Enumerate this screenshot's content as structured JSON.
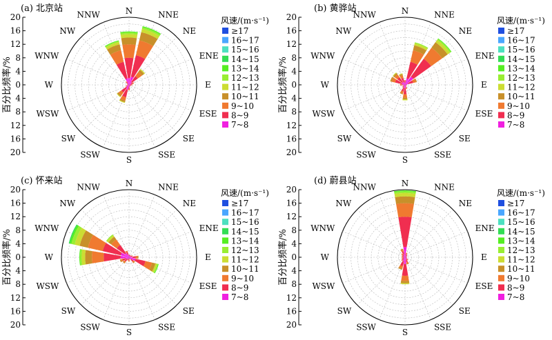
{
  "legend_title": "风速/(m·s⁻¹)",
  "ylabel": "百分比频率/%",
  "directions": [
    "N",
    "NNE",
    "NE",
    "ENE",
    "E",
    "ESE",
    "SE",
    "SSE",
    "S",
    "SSW",
    "SW",
    "WSW",
    "W",
    "WNW",
    "NW",
    "NNW"
  ],
  "legend": [
    {
      "label": "≥17",
      "color": "#1f4fe0"
    },
    {
      "label": "16~17",
      "color": "#4aa6ff"
    },
    {
      "label": "15~16",
      "color": "#4de0c0"
    },
    {
      "label": "14~15",
      "color": "#33dd55"
    },
    {
      "label": "13~14",
      "color": "#55ee22"
    },
    {
      "label": "12~13",
      "color": "#99ee33"
    },
    {
      "label": "11~12",
      "color": "#ccdd33"
    },
    {
      "label": "10~11",
      "color": "#c8902a"
    },
    {
      "label": "9~10",
      "color": "#f07a30"
    },
    {
      "label": "8~9",
      "color": "#f02e50"
    },
    {
      "label": "7~8",
      "color": "#f020e0"
    }
  ],
  "chart_data": [
    {
      "type": "polar-stacked-bar",
      "title": "(a) 北京站",
      "rlim": [
        0,
        20
      ],
      "radial_ticks": [
        0,
        4,
        8,
        12,
        16,
        20
      ],
      "categories": [
        "N",
        "NNE",
        "NE",
        "ENE",
        "E",
        "ESE",
        "SE",
        "SSE",
        "S",
        "SSW",
        "SW",
        "WSW",
        "W",
        "WNW",
        "NW",
        "NNW"
      ],
      "bins": [
        "7~8",
        "8~9",
        "9~10",
        "10~11",
        "11~12",
        "12~13",
        "13~14",
        "14~15"
      ],
      "values": [
        [
          2.0,
          6.0,
          4.0,
          2.0,
          1.0,
          0.5,
          0.3,
          0
        ],
        [
          2.5,
          6.5,
          4.5,
          2.5,
          1.0,
          0.5,
          0.3,
          0
        ],
        [
          1.0,
          2.2,
          1.5,
          0.8,
          0.3,
          0,
          0,
          0
        ],
        [
          0.5,
          0.7,
          0.3,
          0,
          0,
          0,
          0,
          0
        ],
        [
          0.4,
          0.4,
          0.2,
          0,
          0,
          0,
          0,
          0
        ],
        [
          0.3,
          0.3,
          0,
          0,
          0,
          0,
          0,
          0
        ],
        [
          0.3,
          0.2,
          0,
          0,
          0,
          0,
          0,
          0
        ],
        [
          0.3,
          0.3,
          0,
          0,
          0,
          0,
          0,
          0
        ],
        [
          0.5,
          0.8,
          0.3,
          0,
          0,
          0,
          0,
          0
        ],
        [
          1.5,
          2.3,
          1.0,
          0.5,
          0.2,
          0,
          0,
          0
        ],
        [
          1.0,
          1.8,
          1.0,
          0.5,
          0.2,
          0,
          0,
          0
        ],
        [
          0.4,
          0.4,
          0.2,
          0,
          0,
          0,
          0,
          0
        ],
        [
          0.3,
          0.2,
          0,
          0,
          0,
          0,
          0,
          0
        ],
        [
          0.3,
          0.3,
          0,
          0,
          0,
          0,
          0,
          0
        ],
        [
          0.5,
          0.5,
          0.3,
          0,
          0,
          0,
          0,
          0
        ],
        [
          2.0,
          5.0,
          3.5,
          1.8,
          0.7,
          0.3,
          0.2,
          0
        ]
      ]
    },
    {
      "type": "polar-stacked-bar",
      "title": "(b) 黄骅站",
      "rlim": [
        0,
        20
      ],
      "radial_ticks": [
        0,
        4,
        8,
        12,
        16,
        20
      ],
      "categories": [
        "N",
        "NNE",
        "NE",
        "ENE",
        "E",
        "ESE",
        "SE",
        "SSE",
        "S",
        "SSW",
        "SW",
        "WSW",
        "W",
        "WNW",
        "NW",
        "NNW"
      ],
      "bins": [
        "7~8",
        "8~9",
        "9~10",
        "10~11",
        "11~12",
        "12~13",
        "13~14",
        "14~15"
      ],
      "values": [
        [
          0.5,
          0.6,
          0.3,
          0,
          0,
          0,
          0,
          0
        ],
        [
          2.0,
          5.0,
          3.5,
          1.5,
          0.6,
          0.3,
          0,
          0
        ],
        [
          3.0,
          6.5,
          4.0,
          2.0,
          0.8,
          0.4,
          0.2,
          0
        ],
        [
          1.0,
          1.5,
          0.8,
          0.3,
          0,
          0,
          0,
          0
        ],
        [
          0.3,
          0.3,
          0,
          0,
          0,
          0,
          0,
          0
        ],
        [
          0.2,
          0.2,
          0,
          0,
          0,
          0,
          0,
          0
        ],
        [
          0.3,
          0.2,
          0,
          0,
          0,
          0,
          0,
          0
        ],
        [
          0.5,
          0.5,
          0.3,
          0,
          0,
          0,
          0,
          0
        ],
        [
          1.0,
          1.8,
          1.0,
          0.5,
          0.3,
          0,
          0,
          0
        ],
        [
          0.8,
          1.2,
          0.6,
          0.3,
          0,
          0,
          0,
          0
        ],
        [
          0.4,
          0.4,
          0.2,
          0,
          0,
          0,
          0,
          0
        ],
        [
          0.3,
          0.3,
          0,
          0,
          0,
          0,
          0,
          0
        ],
        [
          0.5,
          0.6,
          0.4,
          0,
          0,
          0,
          0,
          0
        ],
        [
          1.0,
          2.0,
          1.0,
          0.5,
          0,
          0,
          0,
          0
        ],
        [
          1.0,
          1.8,
          1.0,
          0.5,
          0.2,
          0,
          0,
          0
        ],
        [
          0.8,
          1.3,
          0.8,
          0.4,
          0.2,
          0,
          0,
          0
        ]
      ]
    },
    {
      "type": "polar-stacked-bar",
      "title": "(c) 怀来站",
      "rlim": [
        0,
        20
      ],
      "radial_ticks": [
        0,
        4,
        8,
        12,
        16,
        20
      ],
      "categories": [
        "N",
        "NNE",
        "NE",
        "ENE",
        "E",
        "ESE",
        "SE",
        "SSE",
        "S",
        "SSW",
        "SW",
        "WSW",
        "W",
        "WNW",
        "NW",
        "NNW"
      ],
      "bins": [
        "7~8",
        "8~9",
        "9~10",
        "10~11",
        "11~12",
        "12~13",
        "13~14",
        "14~15"
      ],
      "values": [
        [
          0.5,
          0.3,
          0,
          0,
          0,
          0,
          0,
          0
        ],
        [
          0.4,
          0.3,
          0,
          0,
          0,
          0,
          0,
          0
        ],
        [
          0.4,
          0.3,
          0,
          0,
          0,
          0,
          0,
          0
        ],
        [
          0.5,
          0.4,
          0.2,
          0,
          0,
          0,
          0,
          0
        ],
        [
          1.0,
          1.0,
          0.5,
          0.3,
          0,
          0,
          0,
          0
        ],
        [
          2.0,
          3.0,
          2.0,
          1.0,
          0.5,
          0.3,
          0.2,
          0
        ],
        [
          0.8,
          0.8,
          0.4,
          0.2,
          0,
          0,
          0,
          0
        ],
        [
          0.3,
          0.3,
          0,
          0,
          0,
          0,
          0,
          0
        ],
        [
          0.5,
          0.5,
          0.3,
          0,
          0,
          0,
          0,
          0
        ],
        [
          0.4,
          0.4,
          0.2,
          0,
          0,
          0,
          0,
          0
        ],
        [
          0.8,
          0.8,
          0.5,
          0.2,
          0,
          0,
          0,
          0
        ],
        [
          1.0,
          1.0,
          0.5,
          0.3,
          0,
          0,
          0,
          0
        ],
        [
          2.5,
          5.0,
          3.5,
          2.0,
          1.0,
          0.5,
          0.2,
          0
        ],
        [
          2.5,
          5.5,
          4.5,
          2.5,
          1.5,
          1.0,
          0.5,
          0.3
        ],
        [
          1.5,
          3.0,
          2.0,
          1.0,
          0.5,
          0.3,
          0,
          0
        ],
        [
          0.8,
          0.8,
          0.4,
          0,
          0,
          0,
          0,
          0
        ]
      ]
    },
    {
      "type": "polar-stacked-bar",
      "title": "(d) 蔚县站",
      "rlim": [
        0,
        20
      ],
      "radial_ticks": [
        0,
        4,
        8,
        12,
        16,
        20
      ],
      "categories": [
        "N",
        "NNE",
        "NE",
        "ENE",
        "E",
        "ESE",
        "SE",
        "SSE",
        "S",
        "SSW",
        "SW",
        "WSW",
        "W",
        "WNW",
        "NW",
        "NNW"
      ],
      "bins": [
        "7~8",
        "8~9",
        "9~10",
        "10~11",
        "11~12",
        "12~13",
        "13~14",
        "14~15"
      ],
      "values": [
        [
          3.0,
          9.0,
          4.0,
          2.0,
          1.0,
          0.5,
          0.3,
          0
        ],
        [
          0.5,
          0.6,
          0.3,
          0,
          0,
          0,
          0,
          0
        ],
        [
          0.4,
          0.4,
          0,
          0,
          0,
          0,
          0,
          0
        ],
        [
          0.3,
          0.3,
          0,
          0,
          0,
          0,
          0,
          0
        ],
        [
          0.3,
          0.2,
          0,
          0,
          0,
          0,
          0,
          0
        ],
        [
          0.3,
          0.3,
          0,
          0,
          0,
          0,
          0,
          0
        ],
        [
          0.5,
          0.5,
          0.2,
          0,
          0,
          0,
          0,
          0
        ],
        [
          0.8,
          0.8,
          0.4,
          0.2,
          0,
          0,
          0,
          0
        ],
        [
          2.0,
          3.5,
          1.5,
          0.7,
          0.3,
          0,
          0,
          0
        ],
        [
          1.2,
          1.5,
          0.7,
          0.4,
          0,
          0,
          0,
          0
        ],
        [
          0.5,
          0.6,
          0.3,
          0,
          0,
          0,
          0,
          0
        ],
        [
          0.4,
          0.4,
          0.2,
          0,
          0,
          0,
          0,
          0
        ],
        [
          0.4,
          0.4,
          0.2,
          0,
          0,
          0,
          0,
          0
        ],
        [
          0.4,
          0.4,
          0.2,
          0,
          0,
          0,
          0,
          0
        ],
        [
          0.5,
          0.6,
          0.3,
          0,
          0,
          0,
          0,
          0
        ],
        [
          0.8,
          1.0,
          0.5,
          0.3,
          0,
          0,
          0,
          0
        ]
      ]
    }
  ]
}
